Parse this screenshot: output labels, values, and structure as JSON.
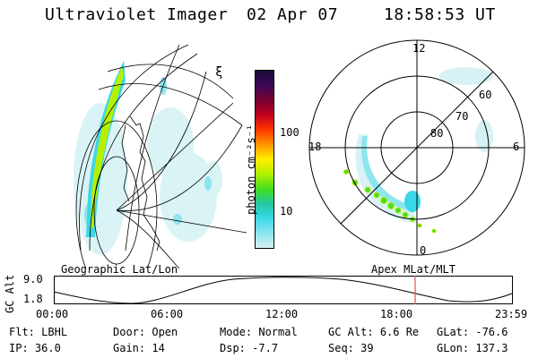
{
  "header": {
    "title": "Ultraviolet Imager",
    "date": "02 Apr 07",
    "time": "18:58:53 UT"
  },
  "left_panel": {
    "label": "Geographic Lat/Lon"
  },
  "right_panel": {
    "label": "Apex MLat/MLT",
    "mlt_labels": {
      "top": "12",
      "left": "18",
      "right": "6",
      "bottom": "0"
    },
    "lat_labels": [
      "60",
      "70",
      "80"
    ]
  },
  "colorbar": {
    "unit_label": "photon cm⁻²s⁻¹",
    "tick_labels": [
      "100",
      "10"
    ],
    "colors": [
      "#1a0b3a",
      "#3a0a55",
      "#7a0030",
      "#c00020",
      "#ff3300",
      "#ff9900",
      "#ffee00",
      "#b6f000",
      "#44dd22",
      "#22c8a0",
      "#3ad7e6",
      "#8fe5ef",
      "#d6f2f5"
    ]
  },
  "orbit_plot": {
    "ylabel": "GC Alt",
    "y_ticks": [
      "9.0",
      "1.8"
    ],
    "x_ticks": [
      "00:00",
      "06:00",
      "12:00",
      "18:00",
      "23:59"
    ]
  },
  "status": {
    "row1": [
      {
        "label": "Flt:",
        "value": "LBHL"
      },
      {
        "label": "Door:",
        "value": "Open"
      },
      {
        "label": "Mode:",
        "value": "Normal"
      },
      {
        "label": "GC Alt:",
        "value": "6.6 Re"
      },
      {
        "label": "GLat:",
        "value": "-76.6"
      }
    ],
    "row2": [
      {
        "label": "IP:",
        "value": "36.0"
      },
      {
        "label": "Gain:",
        "value": "14"
      },
      {
        "label": "Dsp:",
        "value": "-7.7"
      },
      {
        "label": "Seq:",
        "value": "39"
      },
      {
        "label": "GLon:",
        "value": "137.3"
      }
    ]
  },
  "colors": {
    "marker": "#e05050",
    "aurora_bright": "#c8f000",
    "aurora_mid": "#3ad7e6",
    "aurora_faint": "#d6f2f5"
  }
}
